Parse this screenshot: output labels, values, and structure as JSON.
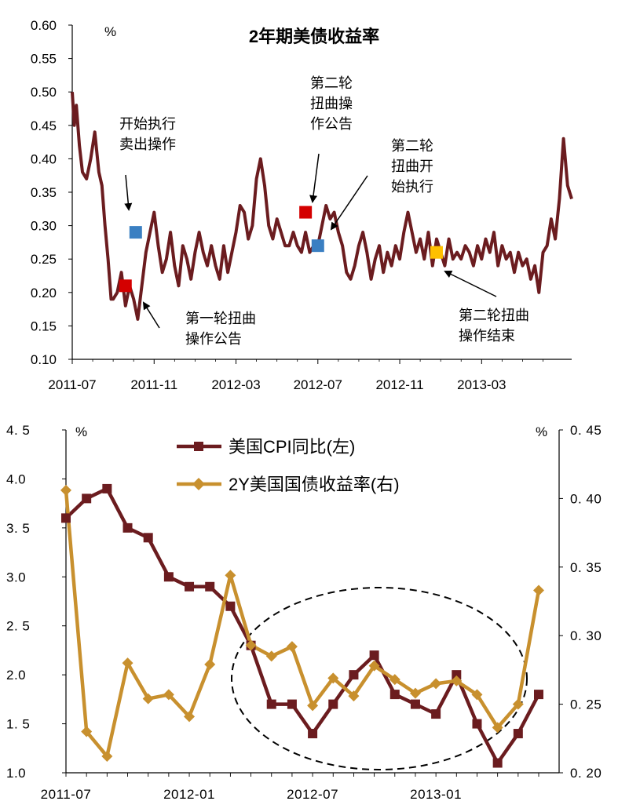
{
  "chart_data": [
    {
      "type": "line",
      "title": "2年期美债收益率",
      "ylabel": "%",
      "ylim": [
        0.1,
        0.6
      ],
      "yticks": [
        "0.10",
        "0.15",
        "0.20",
        "0.25",
        "0.30",
        "0.35",
        "0.40",
        "0.45",
        "0.50",
        "0.55",
        "0.60"
      ],
      "xticks": [
        "2011-07",
        "2011-11",
        "2012-03",
        "2012-07",
        "2012-11",
        "2013-03"
      ],
      "xrange": [
        0,
        24.4
      ],
      "grid": false,
      "colors": {
        "line": "#6b1c1f",
        "announce": "#d40000",
        "execute": "#3a7fc2",
        "end": "#ffc000"
      },
      "series": [
        {
          "x": [
            0,
            0.1,
            0.2,
            0.35,
            0.5,
            0.7,
            0.9,
            1.0,
            1.1,
            1.3,
            1.45,
            1.6,
            1.75,
            1.9,
            2.0,
            2.2,
            2.4,
            2.6,
            2.8,
            3.0,
            3.2,
            3.4,
            3.6,
            3.8,
            4.0,
            4.2,
            4.4,
            4.6,
            4.8,
            5.0,
            5.2,
            5.4,
            5.6,
            5.8,
            6.0,
            6.2,
            6.4,
            6.6,
            6.8,
            7.0,
            7.2,
            7.4,
            7.6,
            7.8,
            8.0,
            8.2,
            8.4,
            8.6,
            8.8,
            9.0,
            9.2,
            9.4,
            9.6,
            9.8,
            10.0,
            10.2,
            10.4,
            10.6,
            10.8,
            11.0,
            11.2,
            11.4,
            11.6,
            11.8,
            12.0,
            12.2,
            12.4,
            12.6,
            12.8,
            13.0,
            13.2,
            13.4,
            13.6,
            13.8,
            14.0,
            14.2,
            14.4,
            14.6,
            14.8,
            15.0,
            15.2,
            15.4,
            15.6,
            15.8,
            16.0,
            16.2,
            16.4,
            16.6,
            16.8,
            17.0,
            17.2,
            17.4,
            17.6,
            17.8,
            18.0,
            18.2,
            18.4,
            18.6,
            18.8,
            19.0,
            19.2,
            19.4,
            19.6,
            19.8,
            20.0,
            20.2,
            20.4,
            20.6,
            20.8,
            21.0,
            21.2,
            21.4,
            21.6,
            21.8,
            22.0,
            22.2,
            22.4,
            22.6,
            22.8,
            23.0,
            23.2,
            23.4,
            23.6,
            23.8,
            24.0,
            24.2,
            24.4
          ],
          "y": [
            0.5,
            0.45,
            0.48,
            0.42,
            0.38,
            0.37,
            0.4,
            0.42,
            0.44,
            0.38,
            0.36,
            0.3,
            0.25,
            0.19,
            0.19,
            0.2,
            0.23,
            0.18,
            0.21,
            0.19,
            0.16,
            0.21,
            0.26,
            0.29,
            0.32,
            0.27,
            0.23,
            0.25,
            0.29,
            0.24,
            0.21,
            0.27,
            0.25,
            0.22,
            0.26,
            0.29,
            0.26,
            0.24,
            0.27,
            0.24,
            0.22,
            0.27,
            0.23,
            0.26,
            0.29,
            0.33,
            0.32,
            0.28,
            0.3,
            0.37,
            0.4,
            0.36,
            0.3,
            0.28,
            0.31,
            0.29,
            0.27,
            0.27,
            0.29,
            0.27,
            0.26,
            0.29,
            0.26,
            0.27,
            0.27,
            0.3,
            0.33,
            0.31,
            0.32,
            0.29,
            0.27,
            0.23,
            0.22,
            0.24,
            0.27,
            0.29,
            0.26,
            0.22,
            0.25,
            0.27,
            0.23,
            0.26,
            0.24,
            0.27,
            0.25,
            0.29,
            0.32,
            0.29,
            0.26,
            0.28,
            0.25,
            0.29,
            0.24,
            0.28,
            0.26,
            0.24,
            0.28,
            0.25,
            0.26,
            0.25,
            0.27,
            0.26,
            0.24,
            0.27,
            0.25,
            0.28,
            0.26,
            0.29,
            0.24,
            0.27,
            0.25,
            0.26,
            0.23,
            0.26,
            0.24,
            0.25,
            0.22,
            0.24,
            0.2,
            0.26,
            0.27,
            0.31,
            0.28,
            0.34,
            0.43,
            0.36,
            0.34
          ]
        }
      ],
      "markers": [
        {
          "x": 2.6,
          "y": 0.21,
          "kind": "announce",
          "label": "第一轮扭曲操作公告",
          "lines": [
            "第一轮扭曲",
            "操作公告"
          ]
        },
        {
          "x": 3.1,
          "y": 0.29,
          "kind": "execute",
          "label": "开始执行卖出操作",
          "lines": [
            "开始执行",
            "卖出操作"
          ]
        },
        {
          "x": 11.4,
          "y": 0.32,
          "kind": "announce",
          "label": "第二轮扭曲操作公告",
          "lines": [
            "第二轮",
            "扭曲操",
            "作公告"
          ]
        },
        {
          "x": 12.0,
          "y": 0.27,
          "kind": "execute",
          "label": "第二轮扭曲开始执行",
          "lines": [
            "第二轮",
            "扭曲开",
            "始执行"
          ]
        },
        {
          "x": 17.8,
          "y": 0.26,
          "kind": "end",
          "label": "第二轮扭曲操作结束",
          "lines": [
            "第二轮扭曲",
            "操作结束"
          ]
        }
      ]
    },
    {
      "type": "line",
      "categories": [
        "2011-07",
        "2011-08",
        "2011-09",
        "2011-10",
        "2011-11",
        "2011-12",
        "2012-01",
        "2012-02",
        "2012-03",
        "2012-04",
        "2012-05",
        "2012-06",
        "2012-07",
        "2012-08",
        "2012-09",
        "2012-10",
        "2012-11",
        "2012-12",
        "2013-01",
        "2013-02",
        "2013-03",
        "2013-04",
        "2013-05",
        "2013-06"
      ],
      "xticks": [
        "2011-07",
        "2012-01",
        "2012-07",
        "2013-01"
      ],
      "ylabel_left": "%",
      "ylabel_right": "%",
      "ylim_left": [
        1.0,
        4.5
      ],
      "ylim_right": [
        0.2,
        0.45
      ],
      "yticks_left": [
        "1.0",
        "1. 5",
        "2.0",
        "2. 5",
        "3.0",
        "3. 5",
        "4.0",
        "4. 5"
      ],
      "yticks_right": [
        "0. 20",
        "0. 25",
        "0. 30",
        "0. 35",
        "0. 40",
        "0. 45"
      ],
      "legend_position": "top-center",
      "grid": false,
      "series": [
        {
          "name": "美国CPI同比(左)",
          "axis": "left",
          "color": "#6b1c1f",
          "marker": "square",
          "values": [
            3.6,
            3.8,
            3.9,
            3.5,
            3.4,
            3.0,
            2.9,
            2.9,
            2.7,
            2.3,
            1.7,
            1.7,
            1.4,
            1.7,
            2.0,
            2.2,
            1.8,
            1.7,
            1.6,
            2.0,
            1.5,
            1.1,
            1.4,
            1.8
          ]
        },
        {
          "name": "2Y美国国债收益率(右)",
          "axis": "right",
          "color": "#c8902e",
          "marker": "diamond",
          "values": [
            0.406,
            0.23,
            0.212,
            0.28,
            0.254,
            0.257,
            0.241,
            0.279,
            0.344,
            0.293,
            0.285,
            0.292,
            0.249,
            0.269,
            0.256,
            0.278,
            0.268,
            0.258,
            0.265,
            0.267,
            0.257,
            0.233,
            0.25,
            0.333
          ]
        }
      ]
    }
  ]
}
